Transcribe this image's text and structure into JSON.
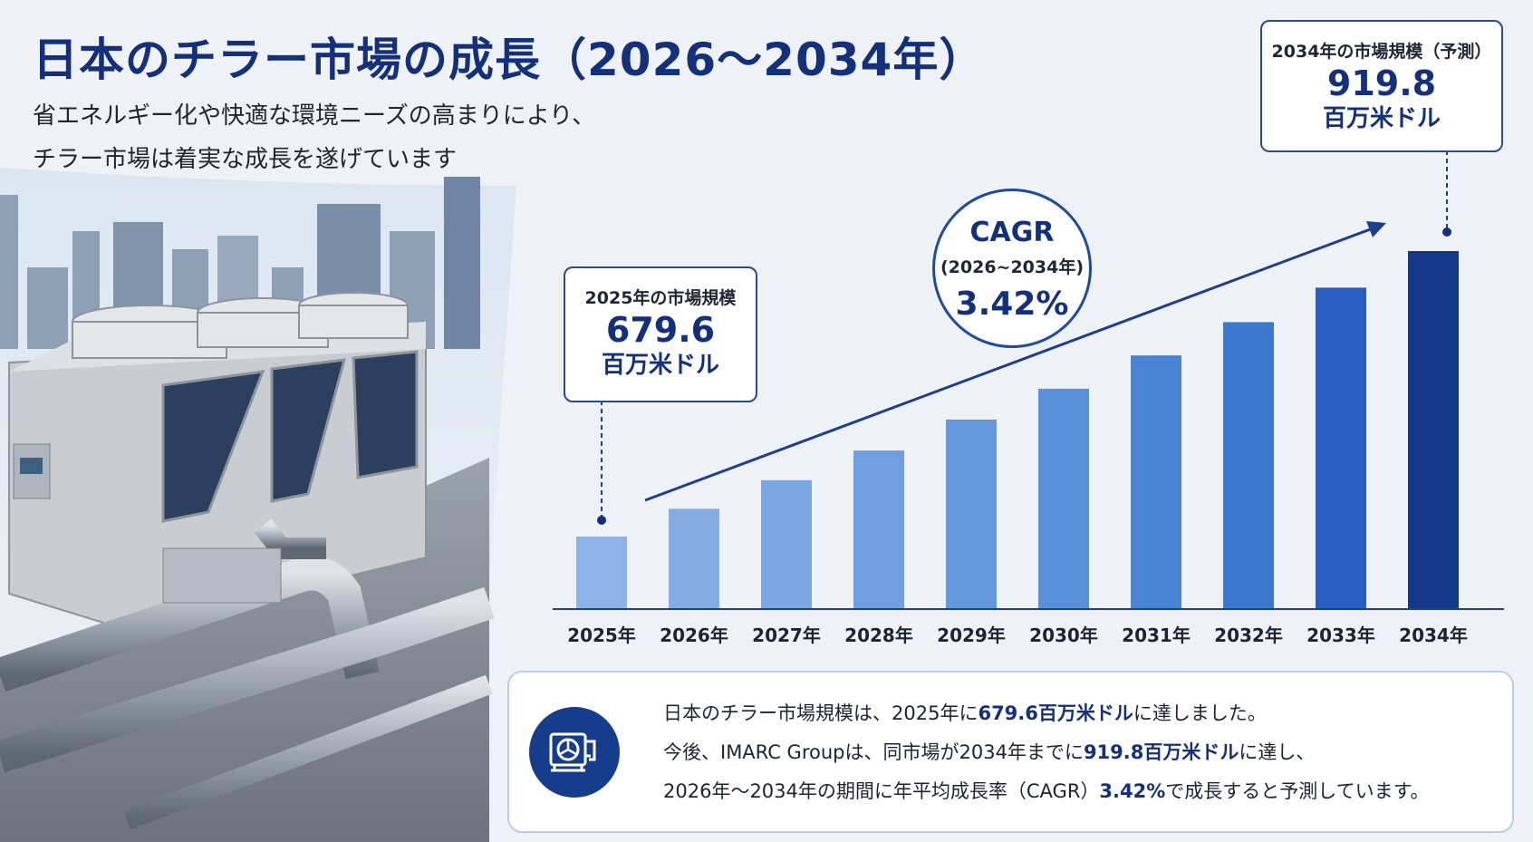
{
  "header": {
    "title": "日本のチラー市場の成長（2026～2034年）",
    "subtitle_line1": "省エネルギー化や快適な環境ニーズの高まりにより、",
    "subtitle_line2": "チラー市場は着実な成長を遂げています"
  },
  "callout_2025": {
    "label": "2025年の市場規模",
    "value": "679.6",
    "unit": "百万米ドル"
  },
  "callout_2034": {
    "label": "2034年の市場規模（予測）",
    "value": "919.8",
    "unit": "百万米ドル"
  },
  "cagr": {
    "title": "CAGR",
    "period": "(2026~2034年)",
    "value": "3.42%"
  },
  "summary": {
    "l1_a": "日本のチラー市場規模は、2025年に",
    "l1_hl": "679.6百万米ドル",
    "l1_b": "に達しました。",
    "l2_a": "今後、IMARC Groupは、同市場が2034年までに",
    "l2_hl": "919.8百万米ドル",
    "l2_b": "に達し、",
    "l3_a": "2026年～2034年の期間に年平均成長率（CAGR）",
    "l3_hl": "3.42%",
    "l3_b": "で成長すると予測しています。"
  },
  "chart_data": {
    "type": "bar",
    "categories": [
      "2025年",
      "2026年",
      "2027年",
      "2028年",
      "2029年",
      "2030年",
      "2031年",
      "2032年",
      "2033年",
      "2034年"
    ],
    "values": [
      679.6,
      703,
      727,
      752,
      778,
      804,
      832,
      860,
      889,
      919.8
    ],
    "colors": [
      "#8fb3e6",
      "#85ade4",
      "#7aa6e2",
      "#6f9fe0",
      "#6398dc",
      "#5a90da",
      "#4a83d4",
      "#3d78cf",
      "#2a5ec0",
      "#163888"
    ],
    "axis_color": "#1d3f8f",
    "trend_arrow": true
  }
}
